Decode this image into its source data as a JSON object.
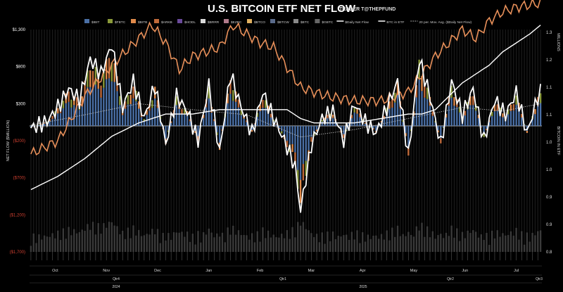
{
  "header": {
    "title": "U.S. BITCOIN ETF NET FLOW",
    "credit": "TRADER T@THEPFUND"
  },
  "legend": [
    {
      "label": "$IBIT",
      "color": "#4a6fa5",
      "kind": "bar"
    },
    {
      "label": "$FBTC",
      "color": "#8a9a3a",
      "kind": "bar"
    },
    {
      "label": "$BITB",
      "color": "#e08a4a",
      "kind": "bar"
    },
    {
      "label": "$ARKB",
      "color": "#c06a3a",
      "kind": "bar"
    },
    {
      "label": "$HODL",
      "color": "#6a4a9a",
      "kind": "bar"
    },
    {
      "label": "$BRRR",
      "color": "#d8d8d8",
      "kind": "bar"
    },
    {
      "label": "$EZBC",
      "color": "#b07a8a",
      "kind": "bar"
    },
    {
      "label": "$BTCO",
      "color": "#e0b060",
      "kind": "bar"
    },
    {
      "label": "$BTCW",
      "color": "#5a6a8a",
      "kind": "bar"
    },
    {
      "label": "$BTC",
      "color": "#888888",
      "kind": "bar"
    },
    {
      "label": "$GBTC",
      "color": "#666666",
      "kind": "bar"
    },
    {
      "label": "$Daily Net Flow",
      "color": "#ffffff",
      "kind": "line"
    },
    {
      "label": "BTC in ETF",
      "color": "#ffffff",
      "kind": "line"
    },
    {
      "label": "20 per. Mov. Avg. ($Daily Net Flow)",
      "color": "#cccccc",
      "kind": "dotted"
    }
  ],
  "axes": {
    "left_label": "NET FLOW ($MILLION)",
    "right_label": "BITCOIN IN ETF",
    "right_unit": "MILLIONS",
    "left_ticks": [
      {
        "label": "$1,300",
        "value": 1300,
        "color": "#ffffff"
      },
      {
        "label": "$800",
        "value": 800,
        "color": "#ffffff"
      },
      {
        "label": "$300",
        "value": 300,
        "color": "#ffffff"
      },
      {
        "label": "($200)",
        "value": -200,
        "color": "#d04030"
      },
      {
        "label": "($700)",
        "value": -700,
        "color": "#d04030"
      },
      {
        "label": "($1,200)",
        "value": -1200,
        "color": "#d04030"
      },
      {
        "label": "($1,700)",
        "value": -1700,
        "color": "#d04030"
      }
    ],
    "right_ticks": [
      "1.3",
      "1.2",
      "1.1",
      "1.1",
      "1.0",
      "1.0",
      "0.9",
      "0.9",
      "0.8"
    ],
    "months": [
      "Oct",
      "Nov",
      "Dec",
      "Jan",
      "Feb",
      "Mar",
      "Apr",
      "May",
      "Jun",
      "Jul"
    ],
    "quarters": [
      "Qtr4",
      "Qtr1",
      "Qtr2",
      "Qtr3"
    ],
    "years": [
      "2024",
      "2025"
    ]
  },
  "chart_data": {
    "type": "bar",
    "title": "U.S. BITCOIN ETF NET FLOW",
    "ylabel": "NET FLOW ($MILLION)",
    "y2label": "BITCOIN IN ETF",
    "ylim": [
      -1700,
      1300
    ],
    "y2lim": [
      0.8,
      1.3
    ],
    "x_start": "2024-10-01",
    "x_end": "2025-07-03",
    "n_days": 190,
    "series": [
      {
        "name": "$Daily Net Flow",
        "type": "line",
        "keypoints": [
          [
            0,
            -30
          ],
          [
            6,
            60
          ],
          [
            10,
            250
          ],
          [
            14,
            500
          ],
          [
            18,
            350
          ],
          [
            22,
            900
          ],
          [
            26,
            700
          ],
          [
            30,
            1100
          ],
          [
            34,
            250
          ],
          [
            38,
            600
          ],
          [
            42,
            100
          ],
          [
            46,
            550
          ],
          [
            50,
            -250
          ],
          [
            54,
            400
          ],
          [
            58,
            200
          ],
          [
            62,
            -200
          ],
          [
            66,
            550
          ],
          [
            70,
            -350
          ],
          [
            74,
            700
          ],
          [
            78,
            250
          ],
          [
            82,
            -100
          ],
          [
            86,
            450
          ],
          [
            90,
            100
          ],
          [
            94,
            -200
          ],
          [
            98,
            -550
          ],
          [
            100,
            -1150
          ],
          [
            104,
            -250
          ],
          [
            108,
            100
          ],
          [
            112,
            200
          ],
          [
            116,
            -200
          ],
          [
            120,
            300
          ],
          [
            124,
            50
          ],
          [
            128,
            -100
          ],
          [
            132,
            250
          ],
          [
            136,
            600
          ],
          [
            140,
            -400
          ],
          [
            144,
            900
          ],
          [
            148,
            400
          ],
          [
            152,
            -250
          ],
          [
            156,
            600
          ],
          [
            160,
            150
          ],
          [
            164,
            500
          ],
          [
            168,
            -200
          ],
          [
            172,
            350
          ],
          [
            176,
            150
          ],
          [
            180,
            450
          ],
          [
            184,
            -100
          ],
          [
            188,
            400
          ],
          [
            189,
            450
          ]
        ]
      },
      {
        "name": "BTC in ETF",
        "type": "line",
        "keypoints": [
          [
            0,
            0.94
          ],
          [
            10,
            0.97
          ],
          [
            20,
            1.01
          ],
          [
            30,
            1.06
          ],
          [
            40,
            1.09
          ],
          [
            50,
            1.11
          ],
          [
            60,
            1.11
          ],
          [
            70,
            1.12
          ],
          [
            80,
            1.12
          ],
          [
            90,
            1.12
          ],
          [
            95,
            1.12
          ],
          [
            100,
            1.1
          ],
          [
            105,
            1.09
          ],
          [
            110,
            1.09
          ],
          [
            120,
            1.09
          ],
          [
            130,
            1.1
          ],
          [
            140,
            1.11
          ],
          [
            145,
            1.11
          ],
          [
            150,
            1.12
          ],
          [
            155,
            1.15
          ],
          [
            160,
            1.18
          ],
          [
            165,
            1.2
          ],
          [
            170,
            1.22
          ],
          [
            175,
            1.25
          ],
          [
            180,
            1.27
          ],
          [
            185,
            1.29
          ],
          [
            189,
            1.31
          ]
        ]
      },
      {
        "name": "20 per. Mov. Avg. ($Daily Net Flow)",
        "type": "dotted",
        "keypoints": [
          [
            0,
            10
          ],
          [
            20,
            150
          ],
          [
            40,
            300
          ],
          [
            60,
            220
          ],
          [
            80,
            150
          ],
          [
            100,
            -150
          ],
          [
            120,
            -50
          ],
          [
            140,
            100
          ],
          [
            160,
            250
          ],
          [
            175,
            200
          ],
          [
            189,
            300
          ]
        ]
      }
    ]
  }
}
